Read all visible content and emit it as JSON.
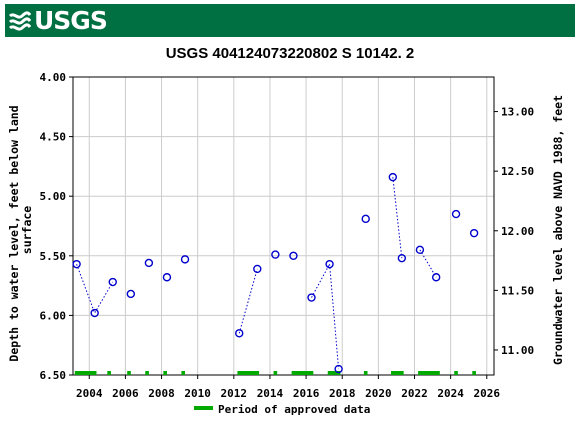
{
  "banner": {
    "logo_text": "USGS",
    "logo_icon": "usgs-wave-icon",
    "color": "#006f41"
  },
  "chart_data": {
    "type": "scatter",
    "title": "USGS 404124073220802 S 10142. 2",
    "ylabel_left": [
      "Depth to water level, feet below land",
      "surface"
    ],
    "ylabel_right": "Groundwater level above NAVD 1988, feet",
    "ylim_left": [
      6.5,
      4.0
    ],
    "ylim_right": [
      10.79,
      13.29
    ],
    "yticks_left": [
      "4.00",
      "4.50",
      "5.00",
      "5.50",
      "6.00",
      "6.50"
    ],
    "yticks_right": [
      "11.00",
      "11.50",
      "12.00",
      "12.50",
      "13.00"
    ],
    "xlim": [
      2003.1,
      2026.4
    ],
    "xticks": [
      "2004",
      "2006",
      "2008",
      "2010",
      "2012",
      "2014",
      "2016",
      "2018",
      "2020",
      "2022",
      "2024",
      "2026"
    ],
    "grid": true,
    "series": [
      {
        "marker": "open-circle",
        "color": "#0000cc",
        "points": [
          {
            "x": 2003.3,
            "y": 5.57
          },
          {
            "x": 2004.3,
            "y": 5.98
          },
          {
            "x": 2005.3,
            "y": 5.72
          },
          {
            "x": 2006.3,
            "y": 5.82
          },
          {
            "x": 2007.3,
            "y": 5.56
          },
          {
            "x": 2008.3,
            "y": 5.68
          },
          {
            "x": 2009.3,
            "y": 5.53
          },
          {
            "x": 2012.3,
            "y": 6.15
          },
          {
            "x": 2013.3,
            "y": 5.61
          },
          {
            "x": 2014.3,
            "y": 5.49
          },
          {
            "x": 2015.3,
            "y": 5.5
          },
          {
            "x": 2016.3,
            "y": 5.85
          },
          {
            "x": 2017.3,
            "y": 5.57
          },
          {
            "x": 2017.8,
            "y": 6.45
          },
          {
            "x": 2019.3,
            "y": 5.19
          },
          {
            "x": 2020.8,
            "y": 4.84
          },
          {
            "x": 2021.3,
            "y": 5.52
          },
          {
            "x": 2022.3,
            "y": 5.45
          },
          {
            "x": 2023.2,
            "y": 5.68
          },
          {
            "x": 2024.3,
            "y": 5.15
          },
          {
            "x": 2025.3,
            "y": 5.31
          }
        ],
        "connected_segments": [
          [
            0,
            1,
            2
          ],
          [
            7,
            8
          ],
          [
            11,
            12
          ],
          [
            12,
            13
          ],
          [
            15,
            16
          ],
          [
            17,
            18
          ]
        ]
      }
    ],
    "approved_periods": [
      [
        2003.2,
        2004.4
      ],
      [
        2005.0,
        2005.2
      ],
      [
        2006.1,
        2006.3
      ],
      [
        2007.1,
        2007.3
      ],
      [
        2008.1,
        2008.3
      ],
      [
        2009.1,
        2009.3
      ],
      [
        2012.2,
        2013.4
      ],
      [
        2014.2,
        2014.4
      ],
      [
        2015.2,
        2016.4
      ],
      [
        2017.2,
        2017.9
      ],
      [
        2019.2,
        2019.4
      ],
      [
        2020.7,
        2021.4
      ],
      [
        2022.2,
        2023.4
      ],
      [
        2024.2,
        2024.4
      ],
      [
        2025.2,
        2025.4
      ]
    ],
    "approved_color": "#00aa00",
    "legend": {
      "label": "Period of approved data",
      "position": "bottom-center"
    }
  }
}
